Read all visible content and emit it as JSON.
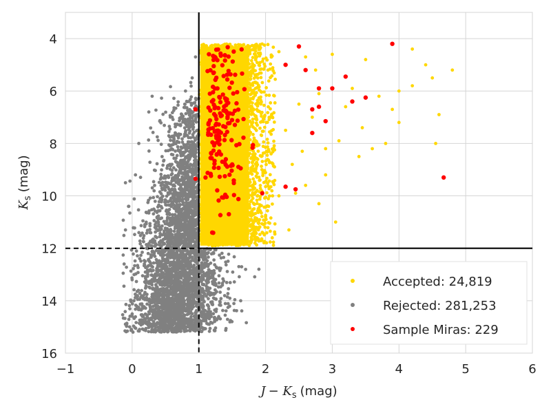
{
  "chart_data": {
    "type": "scatter",
    "title": "",
    "xlabel": "J − Ks (mag)",
    "ylabel": "Ks (mag)",
    "xlim": [
      -1,
      6
    ],
    "ylim": [
      16,
      3
    ],
    "y_inverted": true,
    "grid": true,
    "xticks": [
      -1,
      0,
      1,
      2,
      3,
      4,
      5,
      6
    ],
    "yticks": [
      4,
      6,
      8,
      10,
      12,
      14,
      16
    ],
    "xtick_labels": [
      "−1",
      "0",
      "1",
      "2",
      "3",
      "4",
      "5",
      "6"
    ],
    "ytick_labels": [
      "4",
      "6",
      "8",
      "10",
      "12",
      "14",
      "16"
    ],
    "cut_lines": {
      "color_cut": 1,
      "magnitude_cut": 12
    },
    "legend_position": "lower-right",
    "series": [
      {
        "name": "Accepted: 24,819",
        "color": "#ffd700",
        "description": "dense cloud J-Ks 1-2 (Ks 4.2-12) plus sparse tail to ~4.9",
        "points": [
          [
            2.2,
            4.5
          ],
          [
            2.6,
            4.7
          ],
          [
            3.0,
            4.6
          ],
          [
            3.5,
            4.8
          ],
          [
            4.2,
            4.4
          ],
          [
            4.8,
            5.2
          ],
          [
            4.5,
            5.5
          ],
          [
            3.7,
            6.2
          ],
          [
            3.3,
            5.9
          ],
          [
            2.8,
            6.1
          ],
          [
            4.0,
            6.0
          ],
          [
            4.2,
            5.8
          ],
          [
            4.6,
            6.9
          ],
          [
            4.0,
            7.2
          ],
          [
            3.8,
            8.0
          ],
          [
            3.1,
            7.9
          ],
          [
            2.9,
            8.2
          ],
          [
            3.4,
            8.5
          ],
          [
            2.7,
            7.0
          ],
          [
            2.5,
            6.5
          ],
          [
            2.3,
            7.5
          ],
          [
            2.4,
            8.8
          ],
          [
            2.6,
            9.6
          ],
          [
            2.8,
            10.3
          ],
          [
            3.05,
            11.0
          ],
          [
            2.9,
            9.2
          ],
          [
            2.2,
            10.0
          ],
          [
            2.35,
            11.3
          ],
          [
            2.1,
            11.6
          ],
          [
            2.0,
            10.8
          ],
          [
            3.6,
            8.2
          ],
          [
            3.9,
            6.7
          ],
          [
            4.4,
            5.0
          ],
          [
            2.75,
            5.2
          ],
          [
            3.2,
            6.6
          ],
          [
            2.55,
            8.3
          ],
          [
            4.55,
            8.0
          ],
          [
            3.45,
            7.4
          ],
          [
            2.45,
            9.9
          ]
        ]
      },
      {
        "name": "Rejected: 281,253",
        "color": "#808080",
        "description": "dense giant-branch population, J-Ks ~0.1-1.9, Ks ~5.5-15.2",
        "points": [
          [
            0.3,
            6.2
          ],
          [
            0.25,
            6.8
          ],
          [
            0.1,
            8.0
          ],
          [
            0.05,
            9.2
          ],
          [
            -0.1,
            9.5
          ],
          [
            -0.05,
            10.4
          ],
          [
            -0.1,
            11.3
          ],
          [
            -0.12,
            12.6
          ],
          [
            -0.1,
            14.9
          ],
          [
            0.0,
            13.2
          ],
          [
            1.9,
            12.8
          ],
          [
            1.6,
            12.7
          ],
          [
            0.6,
            7.0
          ],
          [
            0.8,
            6.0
          ],
          [
            0.95,
            4.7
          ],
          [
            0.9,
            5.5
          ]
        ]
      },
      {
        "name": "Sample Miras: 229",
        "color": "#ff0000",
        "description": "red points, mostly in J-Ks 1-2 cloud plus outliers",
        "points": [
          [
            2.5,
            4.3
          ],
          [
            3.9,
            4.2
          ],
          [
            2.3,
            5.0
          ],
          [
            2.6,
            5.2
          ],
          [
            3.2,
            5.45
          ],
          [
            2.8,
            5.9
          ],
          [
            3.0,
            5.9
          ],
          [
            3.5,
            6.25
          ],
          [
            3.3,
            6.4
          ],
          [
            2.8,
            6.6
          ],
          [
            2.7,
            6.7
          ],
          [
            2.7,
            7.6
          ],
          [
            2.9,
            7.15
          ],
          [
            4.67,
            9.3
          ],
          [
            2.45,
            9.75
          ],
          [
            2.3,
            9.65
          ],
          [
            0.95,
            6.7
          ],
          [
            0.95,
            9.35
          ],
          [
            1.2,
            11.4
          ],
          [
            1.45,
            10.7
          ],
          [
            1.95,
            9.9
          ],
          [
            1.1,
            9.3
          ],
          [
            1.5,
            8.8
          ]
        ]
      }
    ]
  }
}
